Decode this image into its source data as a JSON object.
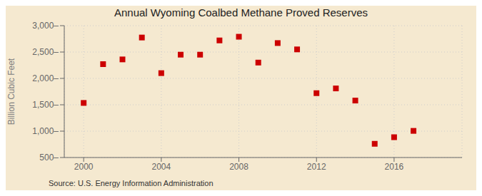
{
  "chart_data": {
    "type": "scatter",
    "title": "Annual Wyoming Coalbed Methane Proved Reserves",
    "y_label": "Billion Cubic Feet",
    "annotations": [
      "Source: U.S. Energy Information Administration"
    ],
    "x": [
      2000,
      2001,
      2002,
      2003,
      2004,
      2005,
      2006,
      2007,
      2008,
      2009,
      2010,
      2011,
      2012,
      2013,
      2014,
      2015,
      2016,
      2017
    ],
    "values": [
      1535,
      2270,
      2360,
      2775,
      2100,
      2450,
      2450,
      2720,
      2790,
      2300,
      2670,
      2550,
      1720,
      1810,
      1580,
      760,
      885,
      1005
    ],
    "color": "#cc0000",
    "marker": "square",
    "xlim": [
      1999.0,
      2019.5
    ],
    "xticks": [
      2000,
      2004,
      2008,
      2012,
      2016
    ],
    "ylim": [
      500,
      3000
    ],
    "yticks": [
      {
        "value": 500,
        "label": "500–"
      },
      {
        "value": 1000,
        "label": "1,000–"
      },
      {
        "value": 1500,
        "label": "1,500–"
      },
      {
        "value": 2000,
        "label": "2,000–"
      },
      {
        "value": 2500,
        "label": "2,500–"
      },
      {
        "value": 3000,
        "label": "3,000–"
      }
    ],
    "grid": true
  }
}
